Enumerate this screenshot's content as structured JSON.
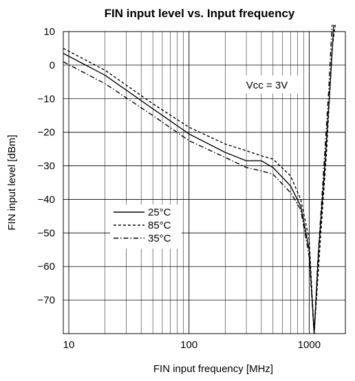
{
  "chart_data": {
    "type": "line",
    "title": "FIN input level vs. Input frequency",
    "xlabel": "FIN input frequency [MHz]",
    "ylabel": "FIN input level [dBm]",
    "x_scale": "log",
    "xlim": [
      9,
      2000
    ],
    "ylim": [
      -80,
      10
    ],
    "x_ticks": [
      10,
      100,
      1000
    ],
    "x_tick_labels": [
      "10",
      "100",
      "1000"
    ],
    "y_ticks": [
      10,
      0,
      -10,
      -20,
      -30,
      -40,
      -50,
      -60,
      -70
    ],
    "y_tick_labels": [
      "10",
      "0",
      "−10",
      "−20",
      "−30",
      "−40",
      "−50",
      "−60",
      "−70"
    ],
    "grid": true,
    "annotation": "Vcc = 3V",
    "legend_position": "lower-left",
    "series": [
      {
        "name": "25°C",
        "style": "solid",
        "points": [
          [
            9,
            3.5
          ],
          [
            20,
            -3
          ],
          [
            50,
            -13
          ],
          [
            100,
            -20.5
          ],
          [
            200,
            -26
          ],
          [
            300,
            -28.5
          ],
          [
            400,
            -28.5
          ],
          [
            500,
            -30.5
          ],
          [
            700,
            -36
          ],
          [
            850,
            -42
          ],
          [
            1000,
            -55
          ],
          [
            1100,
            -80
          ],
          [
            1200,
            -55
          ],
          [
            1350,
            -30
          ],
          [
            1500,
            -5
          ],
          [
            1600,
            12
          ]
        ]
      },
      {
        "name": "85°C",
        "style": "dashed",
        "points": [
          [
            9,
            5
          ],
          [
            20,
            -1.5
          ],
          [
            50,
            -11.5
          ],
          [
            100,
            -18.5
          ],
          [
            200,
            -23.5
          ],
          [
            300,
            -25.5
          ],
          [
            400,
            -27
          ],
          [
            500,
            -28
          ],
          [
            700,
            -33
          ],
          [
            850,
            -40
          ],
          [
            1000,
            -52
          ],
          [
            1100,
            -80
          ],
          [
            1250,
            -50
          ],
          [
            1400,
            -25
          ],
          [
            1550,
            5
          ],
          [
            1650,
            12
          ]
        ]
      },
      {
        "name": "35°C",
        "style": "dashdot",
        "points": [
          [
            9,
            1
          ],
          [
            20,
            -5.5
          ],
          [
            50,
            -15
          ],
          [
            100,
            -22.5
          ],
          [
            200,
            -27.5
          ],
          [
            300,
            -30.5
          ],
          [
            400,
            -31.5
          ],
          [
            500,
            -32.5
          ],
          [
            700,
            -38
          ],
          [
            850,
            -43
          ],
          [
            1000,
            -57
          ],
          [
            1100,
            -80
          ],
          [
            1180,
            -58
          ],
          [
            1300,
            -35
          ],
          [
            1450,
            -8
          ],
          [
            1550,
            12
          ]
        ]
      }
    ]
  }
}
